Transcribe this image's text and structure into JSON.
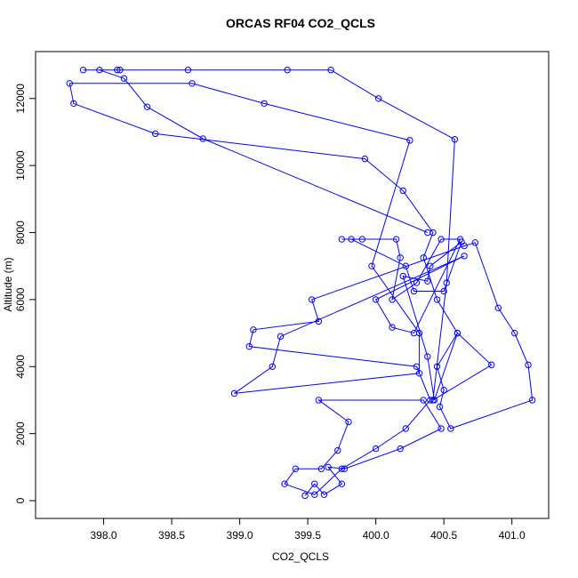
{
  "chart_data": {
    "type": "line",
    "title": "ORCAS RF04 CO2_QCLS",
    "x_label": "CO2_QCLS",
    "y_label": "Altitude (m)",
    "color": "#0000ff",
    "xlim": [
      397.5,
      401.27
    ],
    "ylim": [
      -530,
      13400
    ],
    "xticks": [
      {
        "value": 398,
        "label": "398.0"
      },
      398.5,
      {
        "value": 399,
        "label": "399.0"
      },
      399.5,
      {
        "value": 400,
        "label": "400.0"
      },
      400.5,
      {
        "value": 401,
        "label": "401.0"
      }
    ],
    "yticks": [
      0,
      2000,
      4000,
      6000,
      8000,
      10000,
      12000
    ],
    "x": [
      399.48,
      399.55,
      399.62,
      399.75,
      399.65,
      399.77,
      400.18,
      400.48,
      400.35,
      399.58,
      399.8,
      399.72,
      399.6,
      399.41,
      399.33,
      399.55,
      399.75,
      400.0,
      400.22,
      400.4,
      400.3,
      399.07,
      399.1,
      399.58,
      399.53,
      400.65,
      400.73,
      400.9,
      401.02,
      401.12,
      401.15,
      400.55,
      400.47,
      400.5,
      400.45,
      400.6,
      400.45,
      400.35,
      400.42,
      400.2,
      399.92,
      398.38,
      397.78,
      397.75,
      398.65,
      399.18,
      400.25,
      399.97,
      400.32,
      400.32,
      398.96,
      399.24,
      399.3,
      400.65,
      400.0,
      400.12,
      400.28,
      400.62,
      400.48,
      400.3,
      400.12,
      400.18,
      400.15,
      399.9,
      399.75,
      399.82,
      400.22,
      400.28,
      400.5,
      400.63,
      400.4,
      400.38,
      400.2,
      400.38,
      400.43,
      400.6,
      400.85,
      400.42,
      400.52,
      400.58,
      400.02,
      399.67,
      399.35,
      398.62,
      398.12,
      398.1,
      397.85,
      397.97,
      398.15,
      398.32,
      398.73,
      400.38
    ],
    "values": [
      150,
      500,
      180,
      500,
      1000,
      950,
      1550,
      2150,
      3000,
      3000,
      2350,
      1500,
      950,
      950,
      500,
      180,
      950,
      1550,
      2150,
      3000,
      4000,
      4600,
      5100,
      5350,
      6000,
      7600,
      7700,
      5750,
      5000,
      4050,
      3000,
      2150,
      2800,
      3300,
      4000,
      5000,
      6000,
      7250,
      8000,
      9250,
      10200,
      10950,
      11850,
      12450,
      12450,
      11850,
      10750,
      7000,
      5000,
      3800,
      3200,
      4000,
      4900,
      7300,
      6000,
      5170,
      5000,
      7800,
      7800,
      6500,
      6000,
      7250,
      7800,
      7800,
      7800,
      7800,
      7000,
      6250,
      6250,
      7720,
      7000,
      6550,
      6700,
      4300,
      3000,
      5000,
      4050,
      3000,
      6500,
      10780,
      12000,
      12850,
      12850,
      12850,
      12850,
      12850,
      12850,
      12850,
      12600,
      11750,
      10800,
      8000
    ]
  }
}
